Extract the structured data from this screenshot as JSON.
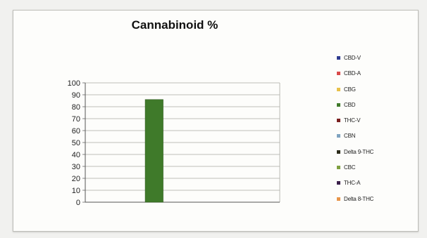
{
  "chart_data": {
    "type": "bar",
    "title": "Cannabinoid %",
    "xlabel": "",
    "ylabel": "",
    "ylim": [
      0,
      100
    ],
    "yticks": [
      0,
      10,
      20,
      30,
      40,
      50,
      60,
      70,
      80,
      90,
      100
    ],
    "grid": true,
    "legend_position": "right",
    "series": [
      {
        "name": "CBD-V",
        "value": 0,
        "color": "#2e3b8f"
      },
      {
        "name": "CBD-A",
        "value": 0,
        "color": "#d94a4a"
      },
      {
        "name": "CBG",
        "value": 0,
        "color": "#e8c14a"
      },
      {
        "name": "CBD",
        "value": 86,
        "color": "#3f7a2a"
      },
      {
        "name": "THC-V",
        "value": 0,
        "color": "#7a1f1f"
      },
      {
        "name": "CBN",
        "value": 0,
        "color": "#7fa3c0"
      },
      {
        "name": "Delta 9-THC",
        "value": 0,
        "color": "#2b2b1a"
      },
      {
        "name": "CBC",
        "value": 0,
        "color": "#7fa040"
      },
      {
        "name": "THC-A",
        "value": 0,
        "color": "#3a1f4a"
      },
      {
        "name": "Delta 8-THC",
        "value": 0,
        "color": "#e8954a"
      }
    ]
  }
}
